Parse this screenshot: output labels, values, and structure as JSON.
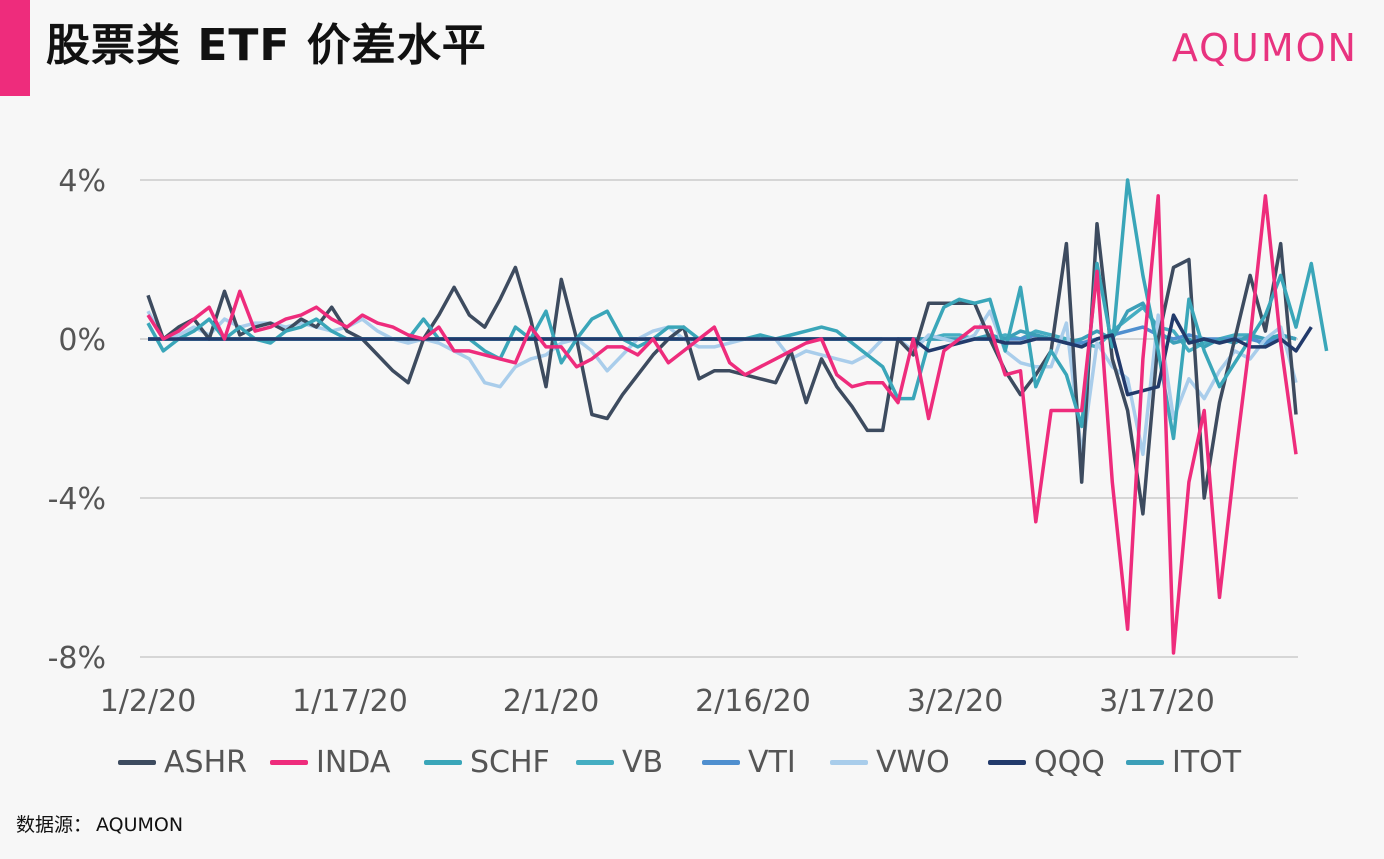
{
  "header": {
    "title": "股票类 ETF 价差水平",
    "brand": "AQUMON"
  },
  "footer": {
    "source_label": "数据源：",
    "source_value": "AQUMON"
  },
  "colors": {
    "accent": "#ee2c7c",
    "brand": "#e8337f",
    "grid": "#cccccc",
    "axis_text": "#555555"
  },
  "chart_data": {
    "type": "line",
    "title": "股票类 ETF 价差水平",
    "x_tick_labels": [
      "1/2/20",
      "1/17/20",
      "2/1/20",
      "2/16/20",
      "3/2/20",
      "3/17/20"
    ],
    "y_tick_labels": [
      "4%",
      "0%",
      "-4%",
      "-8%"
    ],
    "y_tick_values": [
      4,
      0,
      -4,
      -8
    ],
    "ylim": [
      -8,
      4
    ],
    "grid": "horizontal",
    "legend_position": "bottom",
    "series": [
      {
        "name": "ASHR",
        "color": "#3d4b5f",
        "values": [
          1.1,
          0.0,
          0.3,
          0.5,
          0.0,
          1.2,
          0.1,
          0.3,
          0.4,
          0.2,
          0.5,
          0.3,
          0.8,
          0.2,
          0.0,
          -0.4,
          -0.8,
          -1.1,
          0.0,
          0.6,
          1.3,
          0.6,
          0.3,
          1.0,
          1.8,
          0.5,
          -1.2,
          1.5,
          0.0,
          -1.9,
          -2.0,
          -1.4,
          -0.9,
          -0.4,
          0.0,
          0.3,
          -1.0,
          -0.8,
          -0.8,
          -0.9,
          -1.0,
          -1.1,
          -0.3,
          -1.6,
          -0.5,
          -1.2,
          -1.7,
          -2.3,
          -2.3,
          0.0,
          -0.4,
          0.9,
          0.9,
          0.9,
          0.9,
          0.0,
          -0.8,
          -1.4,
          -0.9,
          -0.3,
          2.4,
          -3.6,
          2.9,
          -0.5,
          -1.8,
          -4.4,
          0.0,
          1.8,
          2.0,
          -4.0,
          -1.6,
          0.0,
          1.6,
          0.2,
          2.4,
          -1.9
        ]
      },
      {
        "name": "INDA",
        "color": "#ee2c7c",
        "values": [
          0.6,
          0.0,
          0.2,
          0.5,
          0.8,
          0.0,
          1.2,
          0.2,
          0.3,
          0.5,
          0.6,
          0.8,
          0.5,
          0.3,
          0.6,
          0.4,
          0.3,
          0.1,
          0.0,
          0.3,
          -0.3,
          -0.3,
          -0.4,
          -0.5,
          -0.6,
          0.3,
          -0.2,
          -0.2,
          -0.7,
          -0.5,
          -0.2,
          -0.2,
          -0.4,
          0.0,
          -0.6,
          -0.3,
          0.0,
          0.3,
          -0.6,
          -0.9,
          -0.7,
          -0.5,
          -0.3,
          -0.1,
          0.0,
          -0.9,
          -1.2,
          -1.1,
          -1.1,
          -1.6,
          0.0,
          -2.0,
          -0.3,
          0.0,
          0.3,
          0.3,
          -0.9,
          -0.8,
          -4.6,
          -1.8,
          -1.8,
          -1.8,
          1.7,
          -3.6,
          -7.3,
          -0.5,
          3.6,
          -7.9,
          -3.6,
          -1.8,
          -6.5,
          -3.1,
          0.0,
          3.6,
          -0.1,
          -2.9
        ]
      },
      {
        "name": "SCHF",
        "color": "#3aa6b9",
        "values": [
          0.4,
          -0.3,
          0.0,
          0.2,
          0.5,
          0.0,
          0.3,
          0.0,
          -0.1,
          0.2,
          0.3,
          0.5,
          0.2,
          0.0,
          0.0,
          0.0,
          0.0,
          0.0,
          0.5,
          0.0,
          0.0,
          0.0,
          -0.3,
          -0.5,
          0.3,
          0.0,
          0.7,
          -0.6,
          0.0,
          0.5,
          0.7,
          0.0,
          -0.2,
          0.0,
          0.3,
          0.3,
          0.0,
          0.0,
          0.0,
          0.0,
          0.1,
          0.0,
          0.1,
          0.2,
          0.3,
          0.2,
          -0.1,
          -0.4,
          -0.7,
          -1.5,
          -1.5,
          -0.1,
          0.8,
          1.0,
          0.9,
          1.0,
          -0.3,
          1.3,
          -1.2,
          -0.3,
          -0.9,
          -2.2,
          1.9,
          -0.2,
          4.0,
          1.6,
          -0.3,
          -2.5,
          1.0,
          -0.3,
          -1.2,
          -0.6,
          0.0,
          0.6,
          1.6,
          0.3,
          1.9,
          -0.3
        ]
      },
      {
        "name": "VB",
        "color": "#45aec2",
        "values": [
          0.0,
          0.0,
          0.0,
          0.0,
          0.0,
          0.0,
          0.0,
          0.0,
          0.0,
          0.0,
          0.0,
          0.0,
          0.0,
          0.0,
          0.0,
          0.0,
          0.0,
          0.0,
          0.0,
          0.0,
          0.0,
          0.0,
          0.0,
          0.0,
          0.0,
          0.0,
          0.0,
          0.0,
          0.0,
          0.0,
          0.0,
          0.0,
          0.0,
          0.0,
          0.0,
          0.0,
          0.0,
          0.0,
          0.0,
          0.0,
          0.0,
          0.0,
          0.0,
          0.0,
          0.0,
          0.0,
          0.0,
          0.0,
          0.0,
          0.0,
          0.0,
          0.0,
          0.1,
          0.1,
          0.0,
          0.0,
          0.1,
          0.0,
          0.2,
          0.1,
          0.0,
          -0.1,
          -0.2,
          0.2,
          0.5,
          0.8,
          0.3,
          0.2,
          -0.3,
          -0.1,
          0.0,
          0.1,
          0.1,
          -0.2,
          0.1,
          0.0
        ]
      },
      {
        "name": "VTI",
        "color": "#4f8fcf",
        "values": [
          0.0,
          0.0,
          0.0,
          0.0,
          0.0,
          0.0,
          0.0,
          0.0,
          0.0,
          0.0,
          0.0,
          0.0,
          0.0,
          0.0,
          0.0,
          0.0,
          0.0,
          0.0,
          0.0,
          0.0,
          0.0,
          0.0,
          0.0,
          0.0,
          0.0,
          0.0,
          0.0,
          0.0,
          0.0,
          0.0,
          0.0,
          0.0,
          0.0,
          0.0,
          0.0,
          0.0,
          0.0,
          0.0,
          0.0,
          0.0,
          0.0,
          0.0,
          0.0,
          0.0,
          0.0,
          0.0,
          0.0,
          0.0,
          0.0,
          0.0,
          0.0,
          0.0,
          0.0,
          0.0,
          0.0,
          0.0,
          0.0,
          0.0,
          0.1,
          0.0,
          -0.1,
          -0.1,
          0.0,
          0.1,
          0.2,
          0.3,
          0.1,
          0.0,
          0.1,
          0.0,
          0.0,
          0.0,
          0.0,
          -0.1,
          0.1,
          0.0
        ]
      },
      {
        "name": "VWO",
        "color": "#a9cdeb",
        "values": [
          0.7,
          0.0,
          0.1,
          0.3,
          0.1,
          0.5,
          0.3,
          0.4,
          0.4,
          0.3,
          0.4,
          0.3,
          0.2,
          0.3,
          0.5,
          0.2,
          0.0,
          -0.1,
          0.0,
          -0.1,
          -0.3,
          -0.5,
          -1.1,
          -1.2,
          -0.7,
          -0.5,
          -0.4,
          -0.1,
          0.0,
          -0.3,
          -0.8,
          -0.4,
          0.0,
          0.2,
          0.3,
          0.0,
          -0.2,
          -0.2,
          -0.1,
          0.0,
          0.0,
          0.0,
          -0.5,
          -0.3,
          -0.4,
          -0.5,
          -0.6,
          -0.4,
          0.0,
          0.0,
          -0.3,
          0.1,
          0.0,
          -0.1,
          0.1,
          0.7,
          -0.3,
          -0.6,
          -0.7,
          -0.7,
          0.4,
          -2.9,
          -0.1,
          -0.7,
          -1.0,
          -2.9,
          0.6,
          -2.0,
          -1.0,
          -1.5,
          -0.8,
          -0.3,
          -0.5,
          0.0,
          0.3,
          -1.1
        ]
      },
      {
        "name": "QQQ",
        "color": "#223a6b",
        "values": [
          0.0,
          0.0,
          0.0,
          0.0,
          0.0,
          0.0,
          0.0,
          0.0,
          0.0,
          0.0,
          0.0,
          0.0,
          0.0,
          0.0,
          0.0,
          0.0,
          0.0,
          0.0,
          0.0,
          0.0,
          0.0,
          0.0,
          0.0,
          0.0,
          0.0,
          0.0,
          0.0,
          0.0,
          0.0,
          0.0,
          0.0,
          0.0,
          0.0,
          0.0,
          0.0,
          0.0,
          0.0,
          0.0,
          0.0,
          0.0,
          0.0,
          0.0,
          0.0,
          0.0,
          0.0,
          0.0,
          0.0,
          0.0,
          0.0,
          0.0,
          0.0,
          -0.3,
          -0.2,
          -0.1,
          0.0,
          0.0,
          -0.1,
          -0.1,
          0.0,
          0.0,
          -0.1,
          -0.2,
          0.0,
          0.1,
          -1.4,
          -1.3,
          -1.2,
          0.6,
          -0.1,
          0.0,
          -0.1,
          0.0,
          -0.2,
          -0.2,
          0.0,
          -0.3,
          0.3
        ]
      },
      {
        "name": "ITOT",
        "color": "#3c9fb8",
        "values": [
          0.0,
          0.0,
          0.0,
          0.0,
          0.0,
          0.0,
          0.0,
          0.0,
          0.0,
          0.0,
          0.0,
          0.0,
          0.0,
          0.0,
          0.0,
          0.0,
          0.0,
          0.0,
          0.0,
          0.0,
          0.0,
          0.0,
          0.0,
          0.0,
          0.0,
          0.0,
          0.0,
          0.0,
          0.0,
          0.0,
          0.0,
          0.0,
          0.0,
          0.0,
          0.0,
          0.0,
          0.0,
          0.0,
          0.0,
          0.0,
          0.0,
          0.0,
          0.0,
          0.0,
          0.0,
          0.0,
          0.0,
          0.0,
          0.0,
          0.0,
          0.0,
          0.0,
          0.0,
          0.0,
          0.0,
          0.1,
          0.0,
          0.2,
          0.1,
          0.0,
          -0.1,
          0.0,
          0.2,
          0.0,
          0.7,
          0.9,
          0.2,
          -0.1,
          0.0,
          -0.2,
          0.0,
          -0.1,
          0.1,
          0.0,
          0.1,
          0.0
        ]
      }
    ]
  }
}
